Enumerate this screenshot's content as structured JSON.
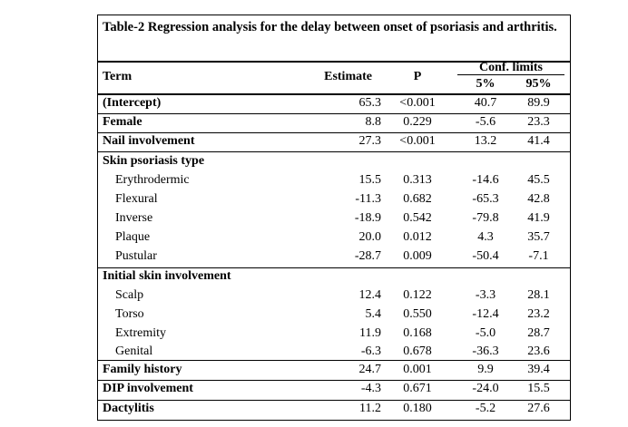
{
  "table": {
    "caption": "Table-2 Regression analysis for the delay between onset of psoriasis and arthritis.",
    "headers": {
      "term": "Term",
      "estimate": "Estimate",
      "p": "P",
      "conf_limits": "Conf. limits",
      "lower": "5%",
      "upper": "95%"
    },
    "rows": [
      {
        "term": "(Intercept)",
        "estimate": "65.3",
        "p": "<0.001",
        "lower": "40.7",
        "upper": "89.9",
        "bold": true
      },
      {
        "term": "Female",
        "estimate": "8.8",
        "p": "0.229",
        "lower": "-5.6",
        "upper": "23.3",
        "bold": true
      },
      {
        "term": "Nail involvement",
        "estimate": "27.3",
        "p": "<0.001",
        "lower": "13.2",
        "upper": "41.4",
        "bold": true
      },
      {
        "term": "Skin psoriasis type",
        "estimate": "",
        "p": "",
        "lower": "",
        "upper": "",
        "bold": true
      },
      {
        "term": "Erythrodermic",
        "estimate": "15.5",
        "p": "0.313",
        "lower": "-14.6",
        "upper": "45.5",
        "bold": false
      },
      {
        "term": "Flexural",
        "estimate": "-11.3",
        "p": "0.682",
        "lower": "-65.3",
        "upper": "42.8",
        "bold": false
      },
      {
        "term": "Inverse",
        "estimate": "-18.9",
        "p": "0.542",
        "lower": "-79.8",
        "upper": "41.9",
        "bold": false
      },
      {
        "term": "Plaque",
        "estimate": "20.0",
        "p": "0.012",
        "lower": "4.3",
        "upper": "35.7",
        "bold": false
      },
      {
        "term": "Pustular",
        "estimate": "-28.7",
        "p": "0.009",
        "lower": "-50.4",
        "upper": "-7.1",
        "bold": false
      },
      {
        "term": "Initial skin involvement",
        "estimate": "",
        "p": "",
        "lower": "",
        "upper": "",
        "bold": true
      },
      {
        "term": "Scalp",
        "estimate": "12.4",
        "p": "0.122",
        "lower": "-3.3",
        "upper": "28.1",
        "bold": false
      },
      {
        "term": "Torso",
        "estimate": "5.4",
        "p": "0.550",
        "lower": "-12.4",
        "upper": "23.2",
        "bold": false
      },
      {
        "term": "Extremity",
        "estimate": "11.9",
        "p": "0.168",
        "lower": "-5.0",
        "upper": "28.7",
        "bold": false
      },
      {
        "term": "Genital",
        "estimate": "-6.3",
        "p": "0.678",
        "lower": "-36.3",
        "upper": "23.6",
        "bold": false
      },
      {
        "term": "Family history",
        "estimate": "24.7",
        "p": "0.001",
        "lower": "9.9",
        "upper": "39.4",
        "bold": true
      },
      {
        "term": "DIP involvement",
        "estimate": "-4.3",
        "p": "0.671",
        "lower": "-24.0",
        "upper": "15.5",
        "bold": true
      },
      {
        "term": "Dactylitis",
        "estimate": "11.2",
        "p": "0.180",
        "lower": "-5.2",
        "upper": "27.6",
        "bold": true
      }
    ]
  }
}
